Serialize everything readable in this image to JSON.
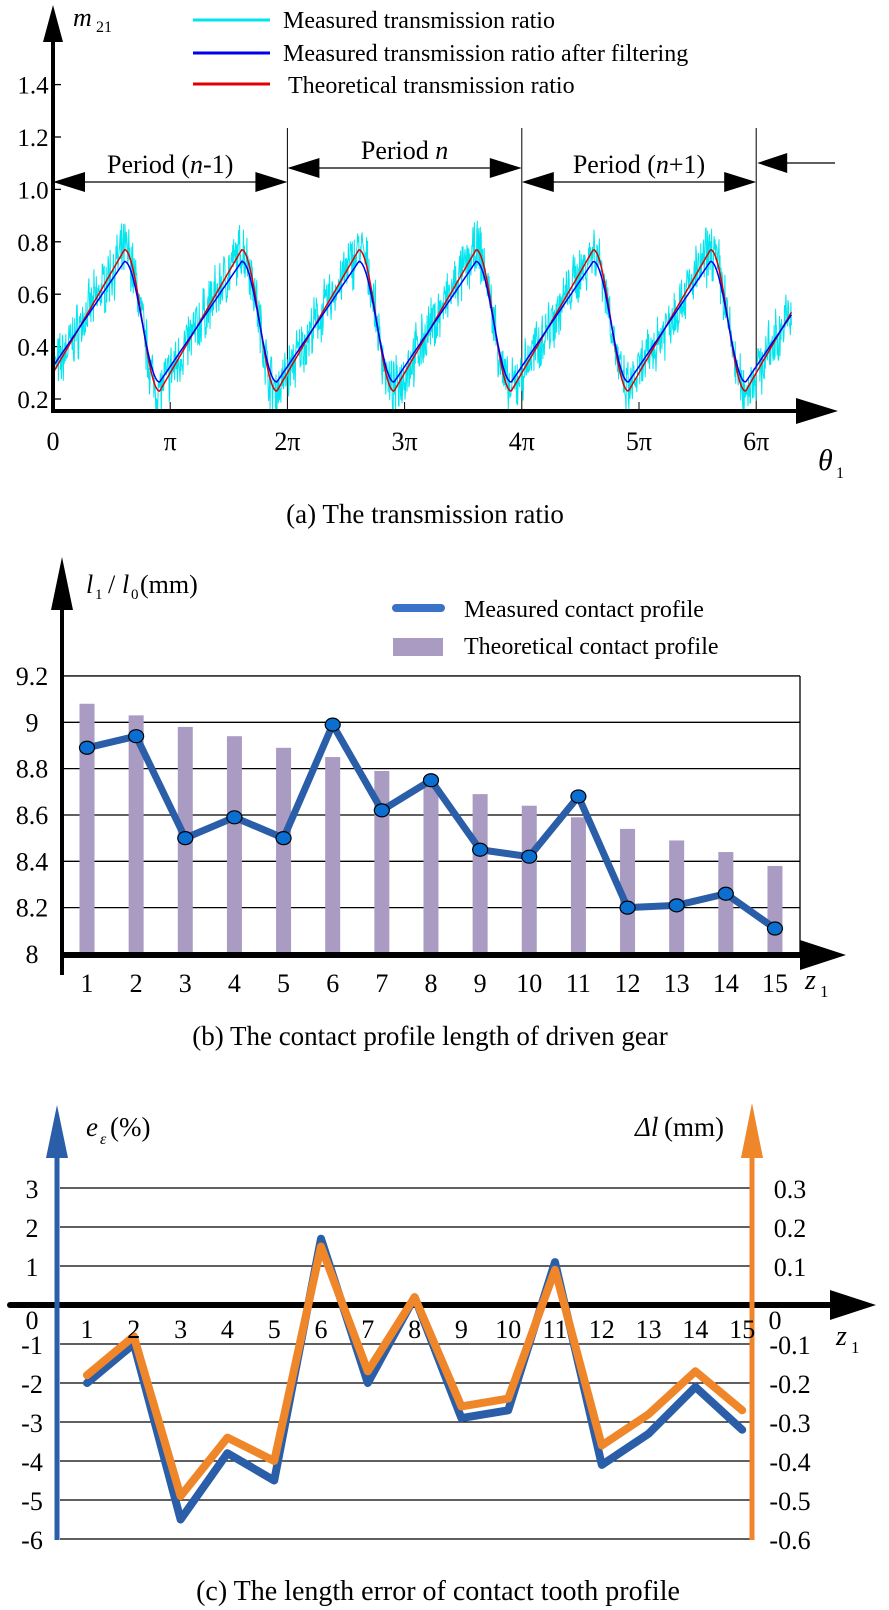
{
  "chart_data": [
    {
      "id": "a",
      "type": "line",
      "caption": "(a) The transmission ratio",
      "ylabel": "m",
      "ylabel_sub": "21",
      "xlabel": "θ",
      "xlabel_sub": "1",
      "xlim_pi": [
        0,
        6.3
      ],
      "ylim": [
        0.1,
        1.6
      ],
      "x_ticks": [
        {
          "v": 0,
          "label": "0"
        },
        {
          "v": 1,
          "label": "π"
        },
        {
          "v": 2,
          "label": "2π"
        },
        {
          "v": 3,
          "label": "3π"
        },
        {
          "v": 4,
          "label": "4π"
        },
        {
          "v": 5,
          "label": "5π"
        },
        {
          "v": 6,
          "label": "6π"
        }
      ],
      "y_ticks": [
        {
          "v": 0.2,
          "label": "0.2"
        },
        {
          "v": 0.4,
          "label": "0.4"
        },
        {
          "v": 0.6,
          "label": "0.6"
        },
        {
          "v": 0.8,
          "label": "0.8"
        },
        {
          "v": 1.0,
          "label": "1.0"
        },
        {
          "v": 1.2,
          "label": "1.2"
        },
        {
          "v": 1.4,
          "label": "1.4"
        }
      ],
      "period_unit_pi": 2,
      "waves_per_period": 2,
      "wave_min": 0.23,
      "wave_max": 0.77,
      "filtered_min": 0.25,
      "filtered_max": 0.74,
      "series": [
        {
          "name": "Measured transmission ratio",
          "color": "#00e5ee"
        },
        {
          "name": "Measured transmission ratio after filtering",
          "color": "#0000ee"
        },
        {
          "name": "Theoretical transmission ratio",
          "color": "#e00000"
        }
      ],
      "periods": [
        {
          "label_pre": "Period (",
          "label_var": "n",
          "label_post": "-1)",
          "start_pi": 0,
          "end_pi": 2
        },
        {
          "label_pre": "Period ",
          "label_var": "n",
          "label_post": "",
          "start_pi": 2,
          "end_pi": 4
        },
        {
          "label_pre": "Period (",
          "label_var": "n",
          "label_post": "+1)",
          "start_pi": 4,
          "end_pi": 6
        }
      ]
    },
    {
      "id": "b",
      "type": "bar",
      "caption": "(b) The contact profile length of driven gear",
      "ylabel": "l1 / l0(mm)",
      "xlabel": "z1",
      "ylim": [
        8,
        9.2
      ],
      "y_ticks": [
        "8",
        "8.2",
        "8.4",
        "8.6",
        "8.8",
        "9",
        "9.2"
      ],
      "categories": [
        "1",
        "2",
        "3",
        "4",
        "5",
        "6",
        "7",
        "8",
        "9",
        "10",
        "11",
        "12",
        "13",
        "14",
        "15"
      ],
      "series": [
        {
          "name": "Measured contact profile",
          "type": "line",
          "color": "#2b5ea8",
          "values": [
            8.89,
            8.94,
            8.5,
            8.59,
            8.5,
            8.99,
            8.62,
            8.75,
            8.45,
            8.42,
            8.68,
            8.2,
            8.21,
            8.26,
            8.11
          ]
        },
        {
          "name": "Theoretical contact profile",
          "type": "bar",
          "color": "#a99bc2",
          "values": [
            9.08,
            9.03,
            8.98,
            8.94,
            8.89,
            8.85,
            8.79,
            8.74,
            8.69,
            8.64,
            8.59,
            8.54,
            8.49,
            8.44,
            8.38
          ]
        }
      ]
    },
    {
      "id": "c",
      "type": "line",
      "caption": "(c) The length error of contact tooth profile",
      "ylabel_left": "e",
      "ylabel_left_sub": "ε",
      "ylabel_left_unit": "(%)",
      "ylabel_right": "Δl",
      "ylabel_right_unit": "(mm)",
      "xlabel": "z1",
      "ylim_left": [
        -6,
        3
      ],
      "ylim_right": [
        -0.6,
        0.3
      ],
      "y_ticks_left": [
        "-6",
        "-5",
        "-4",
        "-3",
        "-2",
        "-1",
        "0",
        "1",
        "2",
        "3"
      ],
      "y_ticks_right": [
        "-0.6",
        "-0.5",
        "-0.4",
        "-0.3",
        "-0.2",
        "-0.1",
        "0",
        "0.1",
        "0.2",
        "0.3"
      ],
      "categories": [
        "1",
        "2",
        "3",
        "4",
        "5",
        "6",
        "7",
        "8",
        "9",
        "10",
        "11",
        "12",
        "13",
        "14",
        "15"
      ],
      "series": [
        {
          "name": "e_ε (%)",
          "axis": "left",
          "color": "#2b5ea8",
          "values": [
            -2.0,
            -1.0,
            -5.5,
            -3.8,
            -4.5,
            1.7,
            -2.0,
            0.2,
            -2.9,
            -2.7,
            1.1,
            -4.1,
            -3.3,
            -2.1,
            -3.2
          ]
        },
        {
          "name": "Δl (mm)",
          "axis": "right",
          "color": "#f0862a",
          "values": [
            -0.18,
            -0.08,
            -0.49,
            -0.34,
            -0.4,
            0.15,
            -0.17,
            0.02,
            -0.26,
            -0.24,
            0.09,
            -0.36,
            -0.28,
            -0.17,
            -0.27
          ]
        }
      ]
    }
  ]
}
